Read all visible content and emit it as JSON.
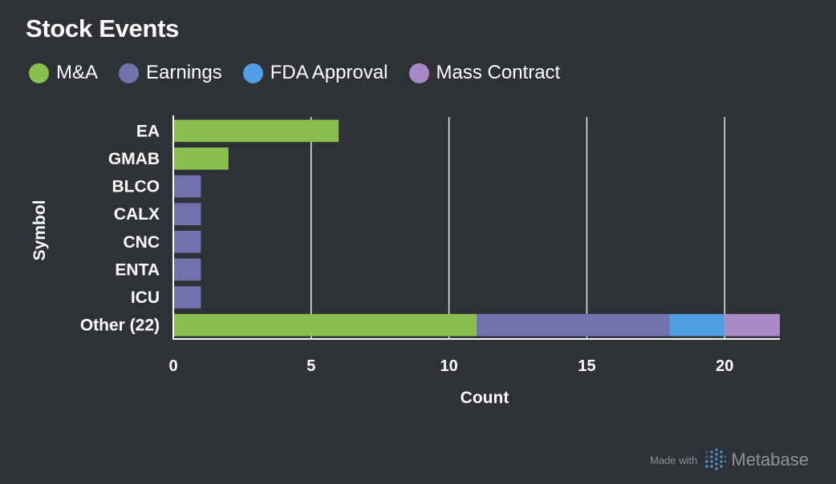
{
  "title": "Stock Events",
  "legend": [
    {
      "label": "M&A",
      "color": "#88bf4d"
    },
    {
      "label": "Earnings",
      "color": "#7172ad"
    },
    {
      "label": "FDA Approval",
      "color": "#509ee3"
    },
    {
      "label": "Mass Contract",
      "color": "#a989c5"
    }
  ],
  "footer": {
    "made_with": "Made with",
    "brand": "Metabase",
    "logo_icon": "metabase-logo-icon"
  },
  "chart_data": {
    "type": "bar",
    "orientation": "horizontal",
    "stacked": true,
    "xlabel": "Count",
    "ylabel": "Symbol",
    "xlim": [
      0,
      22
    ],
    "xticks": [
      0,
      5,
      10,
      15,
      20
    ],
    "grid": true,
    "legend_position": "top-left",
    "categories": [
      "EA",
      "GMAB",
      "BLCO",
      "CALX",
      "CNC",
      "ENTA",
      "ICU",
      "Other (22)"
    ],
    "series": [
      {
        "name": "M&A",
        "color": "#88bf4d",
        "values": [
          6,
          2,
          0,
          0,
          0,
          0,
          0,
          11
        ]
      },
      {
        "name": "Earnings",
        "color": "#7172ad",
        "values": [
          0,
          0,
          1,
          1,
          1,
          1,
          1,
          7
        ]
      },
      {
        "name": "FDA Approval",
        "color": "#509ee3",
        "values": [
          0,
          0,
          0,
          0,
          0,
          0,
          0,
          2
        ]
      },
      {
        "name": "Mass Contract",
        "color": "#a989c5",
        "values": [
          0,
          0,
          0,
          0,
          0,
          0,
          0,
          2
        ]
      }
    ]
  }
}
